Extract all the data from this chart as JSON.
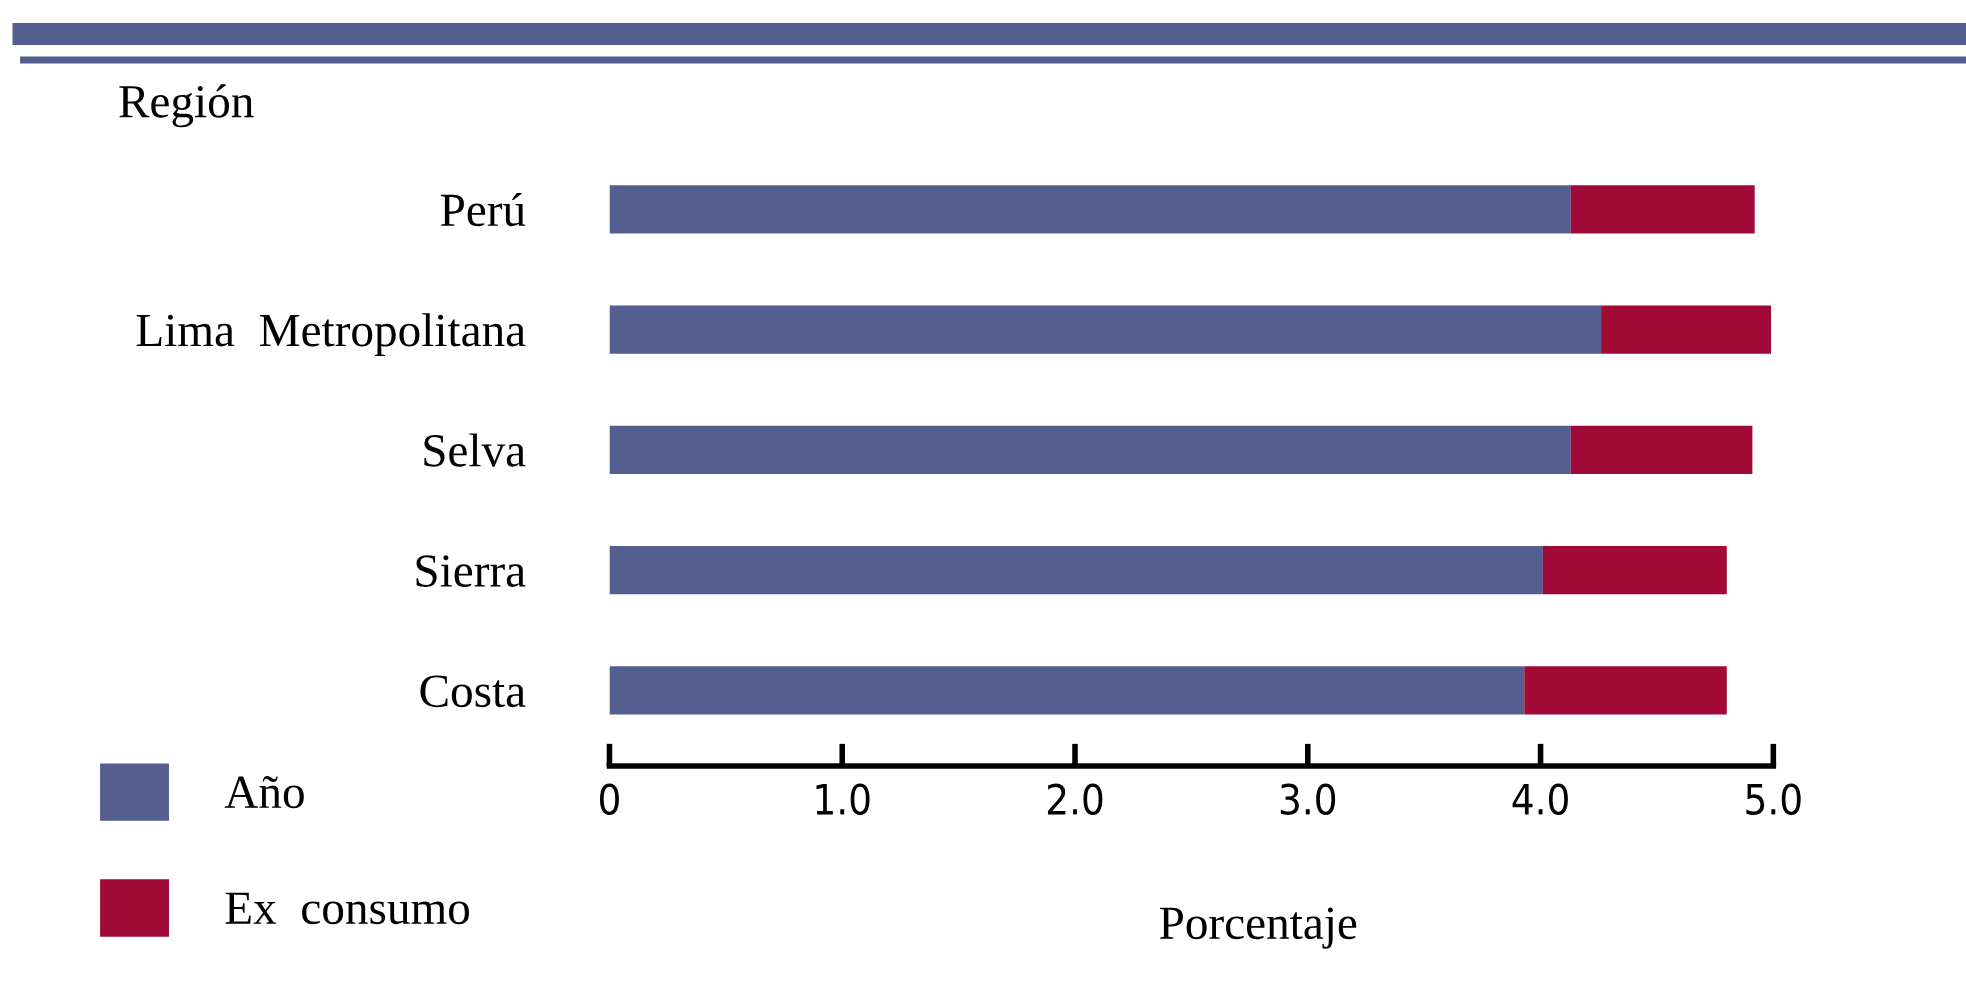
{
  "chart_data": {
    "type": "bar",
    "orientation": "horizontal",
    "stacked": true,
    "ylabel": "Región",
    "xlabel": "Porcentaje",
    "categories": [
      "Perú",
      "Lima  Metropolitana",
      "Selva",
      "Sierra",
      "Costa"
    ],
    "series": [
      {
        "name": "Año",
        "color": "#545e8f",
        "values": [
          4.13,
          4.26,
          4.13,
          4.01,
          3.93
        ]
      },
      {
        "name": "Ex  consumo",
        "color": "#a10a37",
        "values": [
          0.79,
          0.73,
          0.78,
          0.79,
          0.87
        ]
      }
    ],
    "xlim": [
      0,
      5.0
    ],
    "xticks": [
      0,
      {
        "value": 1,
        "label": "1.0"
      },
      {
        "value": 2,
        "label": "2.0"
      },
      {
        "value": 3,
        "label": "3.0"
      },
      {
        "value": 4,
        "label": "4.0"
      },
      {
        "value": 5,
        "label": "5.0"
      }
    ],
    "grid": false,
    "legend": "bottom left"
  }
}
